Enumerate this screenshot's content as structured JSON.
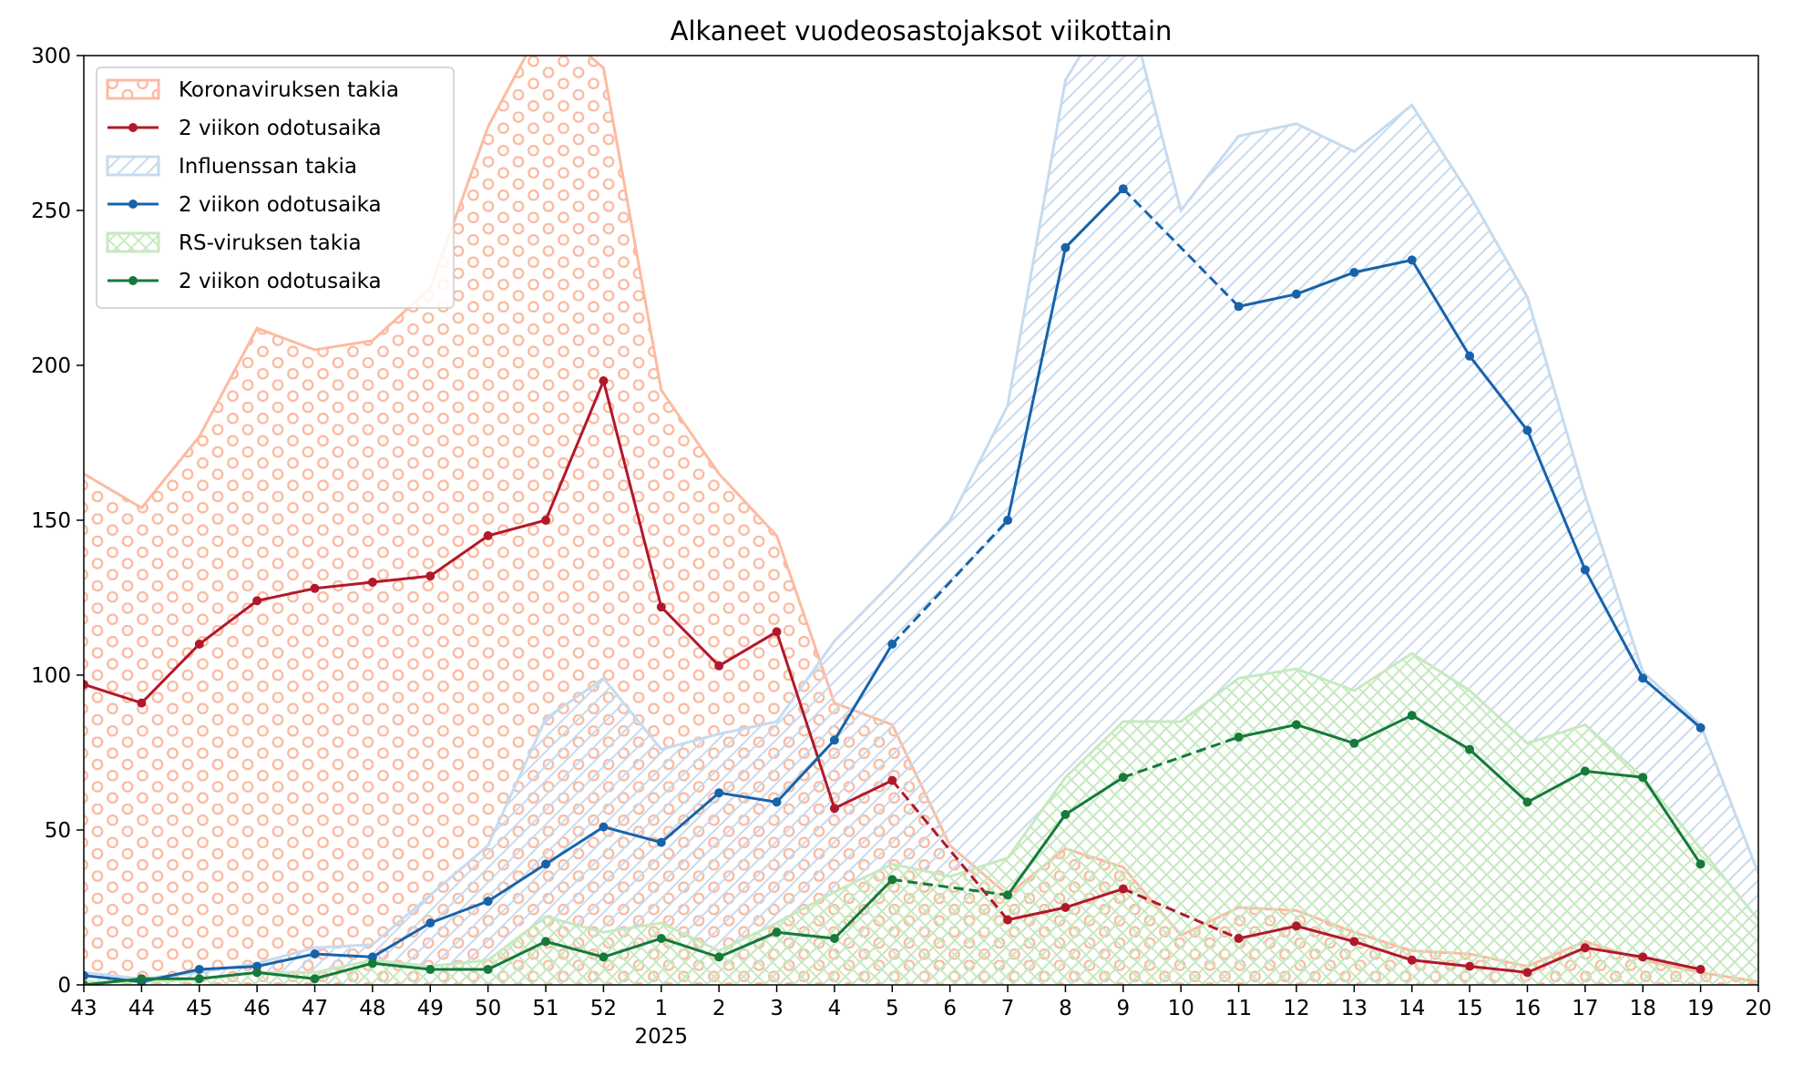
{
  "chart_data": {
    "type": "area",
    "title": "Alkaneet vuodeosastojaksot viikottain",
    "xlabel": "",
    "ylabel": "",
    "x": [
      "43",
      "44",
      "45",
      "46",
      "47",
      "48",
      "49",
      "50",
      "51",
      "52",
      "1",
      "2",
      "3",
      "4",
      "5",
      "6",
      "7",
      "8",
      "9",
      "10",
      "11",
      "12",
      "13",
      "14",
      "15",
      "16",
      "17",
      "18",
      "19",
      "20"
    ],
    "year_label": "2025",
    "year_label_at": "1",
    "ylim": [
      0,
      300
    ],
    "yticks": [
      0,
      50,
      100,
      150,
      200,
      250,
      300
    ],
    "grid": false,
    "legend_position": "top-left",
    "areas": [
      {
        "name": "Koronaviruksen takia",
        "color": "#fcbba1",
        "pattern": "circles",
        "values": [
          165,
          154,
          177,
          212,
          205,
          208,
          225,
          277,
          312,
          296,
          192,
          165,
          145,
          91,
          84,
          45,
          29,
          44,
          38,
          16,
          25,
          24,
          17,
          11,
          10,
          6,
          14,
          8,
          4,
          1
        ]
      },
      {
        "name": "Influenssan takia",
        "color": "#c6dbef",
        "pattern": "diagonal",
        "values": [
          4,
          2,
          4,
          7,
          12,
          13,
          29,
          45,
          86,
          99,
          76,
          81,
          85,
          111,
          130,
          150,
          187,
          292,
          323,
          250,
          274,
          278,
          269,
          284,
          255,
          222,
          158,
          101,
          84,
          36
        ]
      },
      {
        "name": "RS-viruksen takia",
        "color": "#c7e9c0",
        "pattern": "crosshatch",
        "values": [
          1,
          1,
          2,
          4,
          4,
          8,
          6,
          8,
          22,
          17,
          20,
          11,
          20,
          30,
          39,
          35,
          41,
          67,
          85,
          85,
          99,
          102,
          95,
          107,
          95,
          78,
          84,
          67,
          44,
          21
        ]
      }
    ],
    "lines": [
      {
        "name": "2 viikon odotusaika",
        "color": "#b2182b",
        "solid_x": [
          "43",
          "44",
          "45",
          "46",
          "47",
          "48",
          "49",
          "50",
          "51",
          "52",
          "1",
          "2",
          "3",
          "4",
          "5"
        ],
        "solid_y": [
          97,
          91,
          110,
          124,
          128,
          130,
          132,
          145,
          150,
          195,
          122,
          103,
          114,
          57,
          66
        ],
        "dashed_x": [
          "5",
          "7"
        ],
        "dashed_y": [
          66,
          21
        ],
        "solid2_x": [
          "7",
          "8",
          "9"
        ],
        "solid2_y": [
          21,
          25,
          31
        ],
        "dashed2_x": [
          "9",
          "11"
        ],
        "dashed2_y": [
          31,
          15
        ],
        "solid3_x": [
          "11",
          "12",
          "13",
          "14",
          "15",
          "16",
          "17",
          "18",
          "19"
        ],
        "solid3_y": [
          15,
          19,
          14,
          8,
          6,
          4,
          12,
          9,
          5
        ]
      },
      {
        "name": "2 viikon odotusaika",
        "color": "#1763aa",
        "solid_x": [
          "43",
          "44",
          "45",
          "46",
          "47",
          "48",
          "49",
          "50",
          "51",
          "52",
          "1",
          "2",
          "3",
          "4",
          "5"
        ],
        "solid_y": [
          3,
          1,
          5,
          6,
          10,
          9,
          20,
          27,
          39,
          51,
          46,
          62,
          59,
          79,
          110
        ],
        "dashed_x": [
          "5",
          "7"
        ],
        "dashed_y": [
          110,
          150
        ],
        "solid2_x": [
          "7",
          "8",
          "9"
        ],
        "solid2_y": [
          150,
          238,
          257
        ],
        "dashed2_x": [
          "9",
          "11"
        ],
        "dashed2_y": [
          257,
          219
        ],
        "solid3_x": [
          "11",
          "12",
          "13",
          "14",
          "15",
          "16",
          "17",
          "18",
          "19"
        ],
        "solid3_y": [
          219,
          223,
          230,
          234,
          203,
          179,
          134,
          99,
          83
        ]
      },
      {
        "name": "2 viikon odotusaika",
        "color": "#157a3a",
        "solid_x": [
          "43",
          "44",
          "45",
          "46",
          "47",
          "48",
          "49",
          "50",
          "51",
          "52",
          "1",
          "2",
          "3",
          "4",
          "5"
        ],
        "solid_y": [
          0,
          2,
          2,
          4,
          2,
          7,
          5,
          5,
          14,
          9,
          15,
          9,
          17,
          15,
          34
        ],
        "dashed_x": [
          "5",
          "7"
        ],
        "dashed_y": [
          34,
          29
        ],
        "solid2_x": [
          "7",
          "8",
          "9"
        ],
        "solid2_y": [
          29,
          55,
          67
        ],
        "dashed2_x": [
          "9",
          "11"
        ],
        "dashed2_y": [
          67,
          80
        ],
        "solid3_x": [
          "11",
          "12",
          "13",
          "14",
          "15",
          "16",
          "17",
          "18",
          "19"
        ],
        "solid3_y": [
          80,
          84,
          78,
          87,
          76,
          59,
          69,
          67,
          39
        ]
      }
    ],
    "legend_order": [
      {
        "kind": "area",
        "index": 0
      },
      {
        "kind": "line",
        "index": 0
      },
      {
        "kind": "area",
        "index": 1
      },
      {
        "kind": "line",
        "index": 1
      },
      {
        "kind": "area",
        "index": 2
      },
      {
        "kind": "line",
        "index": 2
      }
    ]
  }
}
